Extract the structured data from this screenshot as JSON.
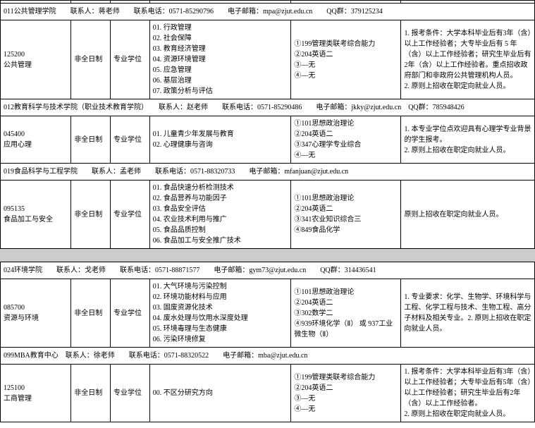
{
  "table1": {
    "stub": "",
    "h1": "011公共管理学院　　联系人：蒋老师　　联系电话：0571-85290796　　电子邮箱：mpa@zjut.edu.cn　　QQ群：379125234",
    "r1": {
      "code": "125200\n公共管理",
      "mode": "非全日制",
      "type": "专业学位",
      "dir": "01. 行政管理\n02. 社会保障\n03. 教育经济管理\n04. 资源环境管理\n05. 应急管理\n06. 基层治理\n07. 政策分析与评估",
      "exam": "①199管理类联考综合能力\n②204英语二\n③—无\n④—无",
      "note": "1. 报考条件：大学本科毕业后有3年（含）以上工作经验者；大专毕业后有 5 年（含）以上工作经验者；研究生毕业后有2年（含）以上工作经验者。重点招收政府部门和非政府公共管理机构人员。\n2. 原则上招收在职定向就业人员。"
    },
    "h2": "012教育科学与技术学院（职业技术教育学院）　　联系人：赵老师　　联系电话：0571-85290486　　电子邮箱：jkky@zjut.edu.cn　QQ群：785948426",
    "r2": {
      "code": "045400\n应用心理",
      "mode": "非全日制",
      "type": "专业学位",
      "dir": "01. 儿童青少年发展与教育\n02. 心理健康与咨询",
      "exam": "①101思想政治理论\n②204英语二\n③347心理学专业综合\n④—无",
      "note": "1. 本专业学位点欢迎具有心理学专业背景的学生报考。\n2. 原则上招收在职定向就业人员。"
    },
    "h3": "019食品科学与工程学院　　联系人：孟老师　　联系电话：0571-88320733　　电子邮箱：mfanjuan@zjut.edu.cn",
    "r3": {
      "code": "095135\n食品加工与安全",
      "mode": "非全日制",
      "type": "专业学位",
      "dir": "01. 食品快速分析检测技术\n02. 食品营养与功能因子\n03. 食品安全评估\n04. 农业技术利用与推广\n05. 食品品质控制\n06. 食品加工与安全推广技术",
      "exam": "①101思想政治理论\n②204英语二\n③341农业知识综合三\n④849食品化学",
      "note": "原则上招收在职定向就业人员。"
    }
  },
  "table2": {
    "h1": "024环境学院　　联系人：戈老师　　联系电话：0571-88871577　　电子邮箱：gym73@zjut.edu.cn　　QQ群：314436541",
    "r1": {
      "code": "085700\n资源与环境",
      "mode": "非全日制",
      "type": "专业学位",
      "dir": "01. 大气环境与污染控制\n02. 环境功能材料与应用\n03. 固废资源化技术\n04. 废水处理与饮用水深度处理\n05. 环境毒理与生态健康\n06. 污染环境修复",
      "exam": "①101思想政治理论\n②204英语二\n③302数学二\n④939环境化学（Ⅱ） 或 937工业微生物（Ⅱ）",
      "note": "1. 专业要求：化学、生物学、环境科学与工程、化学工程与技术、生物工程、高分子材料及相关专业。2. 原则上招收在职定向就业人员。"
    },
    "h2": "099MBA教育中心　联系人：徐老师　　联系电话：0571-88320522　　电子邮箱：mba@zjut.edu.cn",
    "r2": {
      "code": "125100\n工商管理",
      "mode": "非全日制",
      "type": "专业学位",
      "dir": "00. 不区分研究方向",
      "exam": "①199管理类联考综合能力\n②204英语二\n③—无\n④—无",
      "note": "1. 报考条件：大学本科毕业后有3年（含）以上工作经验者；大专毕业后有5年（含）以上工作经验者；研究生毕业后有2年（含）以上工作经验者。\n2. 原则上招收在职定向就业人员。"
    }
  }
}
